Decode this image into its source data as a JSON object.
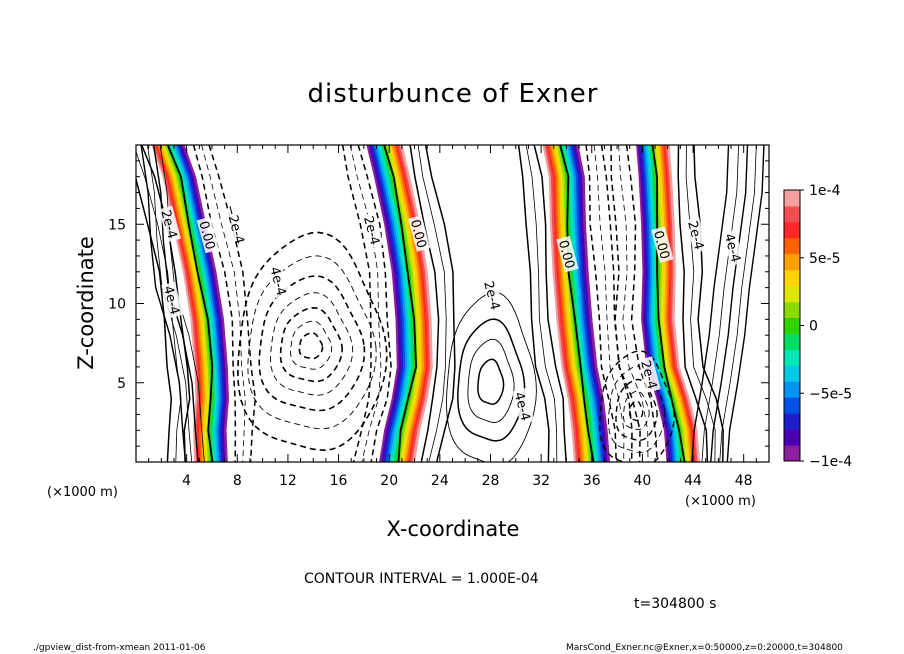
{
  "chart_data": {
    "type": "heatmap",
    "title": "disturbunce of Exner",
    "xlabel": "X-coordinate",
    "ylabel": "Z-coordinate",
    "x_unit_label": "(×1000 m)",
    "y_unit_label": "(×1000 m)",
    "xlim": [
      0,
      50
    ],
    "ylim": [
      0,
      20
    ],
    "x_ticks": [
      4,
      8,
      12,
      16,
      20,
      24,
      28,
      32,
      36,
      40,
      44,
      48
    ],
    "x_tick_labels": [
      "4",
      "8",
      "12",
      "16",
      "20",
      "24",
      "28",
      "32",
      "36",
      "40",
      "44",
      "48"
    ],
    "y_ticks": [
      5,
      10,
      15
    ],
    "y_tick_labels": [
      "5",
      "10",
      "15"
    ],
    "colorbar": {
      "min": -0.0001,
      "max": 0.0001,
      "tick_values": [
        0.0001,
        5e-05,
        0,
        -5e-05,
        -0.0001
      ],
      "tick_labels": [
        "1e-4",
        "5e-5",
        "0",
        "−5e-5",
        "−1e-4"
      ],
      "colors": [
        "#8c1ea0",
        "#4b00b4",
        "#1e1ec8",
        "#0050e6",
        "#0096f0",
        "#00c8e6",
        "#00e6b4",
        "#00dc64",
        "#32d200",
        "#8cdc00",
        "#dce600",
        "#ffd200",
        "#ffa000",
        "#ff6400",
        "#ff2828",
        "#f05050",
        "#f5a0a0"
      ]
    },
    "contour_interval_text": "CONTOUR INTERVAL = 1.000E-04",
    "contour_labels": [
      {
        "text": "2e-4",
        "x": 2.6,
        "z": 15.0
      },
      {
        "text": "0.00",
        "x": 5.6,
        "z": 14.3
      },
      {
        "text": "−2e-4",
        "x": 7.8,
        "z": 15.0
      },
      {
        "text": "4e-4",
        "x": 2.8,
        "z": 10.2
      },
      {
        "text": "4e-4",
        "x": 11.2,
        "z": 11.4
      },
      {
        "text": "2e-4",
        "x": 18.6,
        "z": 14.6
      },
      {
        "text": "0.00",
        "x": 22.3,
        "z": 14.4
      },
      {
        "text": "2e-4",
        "x": 28.1,
        "z": 10.5
      },
      {
        "text": "4e-4",
        "x": 30.5,
        "z": 3.5
      },
      {
        "text": "0.00",
        "x": 34.0,
        "z": 13.1
      },
      {
        "text": "2e-4",
        "x": 40.5,
        "z": 5.5
      },
      {
        "text": "0.00",
        "x": 41.5,
        "z": 13.7
      },
      {
        "text": "2e-4",
        "x": 44.2,
        "z": 14.3
      },
      {
        "text": "4e-4",
        "x": 47.1,
        "z": 13.5
      }
    ],
    "shaded_bands": [
      {
        "x": [
          2.5,
          3.4,
          4.2,
          5.0,
          5.6,
          5.9,
          6.0,
          5.8,
          5.9
        ],
        "z": [
          20.0,
          18.0,
          15.0,
          12.0,
          9.0,
          6.0,
          4.0,
          2.0,
          0.0
        ],
        "halfwidth": 1.3
      },
      {
        "x": [
          19.6,
          20.2,
          21.0,
          21.6,
          21.9,
          22.0,
          21.6,
          21.0,
          20.6
        ],
        "z": [
          20.0,
          18.0,
          15.0,
          12.0,
          9.0,
          6.0,
          4.0,
          2.0,
          0.0
        ],
        "halfwidth": 1.4
      },
      {
        "x": [
          33.5,
          34.0,
          34.1,
          34.3,
          34.6,
          35.0,
          35.5,
          35.8,
          36.0
        ],
        "z": [
          20.0,
          18.0,
          15.0,
          12.0,
          9.0,
          6.0,
          4.0,
          2.0,
          0.0
        ],
        "halfwidth": 1.4
      },
      {
        "x": [
          40.8,
          41.0,
          41.2,
          41.3,
          41.2,
          41.6,
          42.4,
          43.0,
          43.2
        ],
        "z": [
          20.0,
          18.0,
          15.0,
          12.0,
          9.0,
          6.0,
          4.0,
          2.0,
          0.0
        ],
        "halfwidth": 1.3
      }
    ],
    "centers": {
      "neg_left": {
        "x": 13.8,
        "z": 7.3
      },
      "neg_right": {
        "x": 39.5,
        "z": 3.2
      },
      "pos_mid": {
        "x": 28.0,
        "z": 5.0
      }
    }
  },
  "annotations": {
    "time": "t=304800 s",
    "footer_left": "./gpview_dist-from-xmean  2011-01-06",
    "footer_right": "MarsCond_Exner.nc@Exner,x=0:50000,z=0:20000,t=304800"
  }
}
